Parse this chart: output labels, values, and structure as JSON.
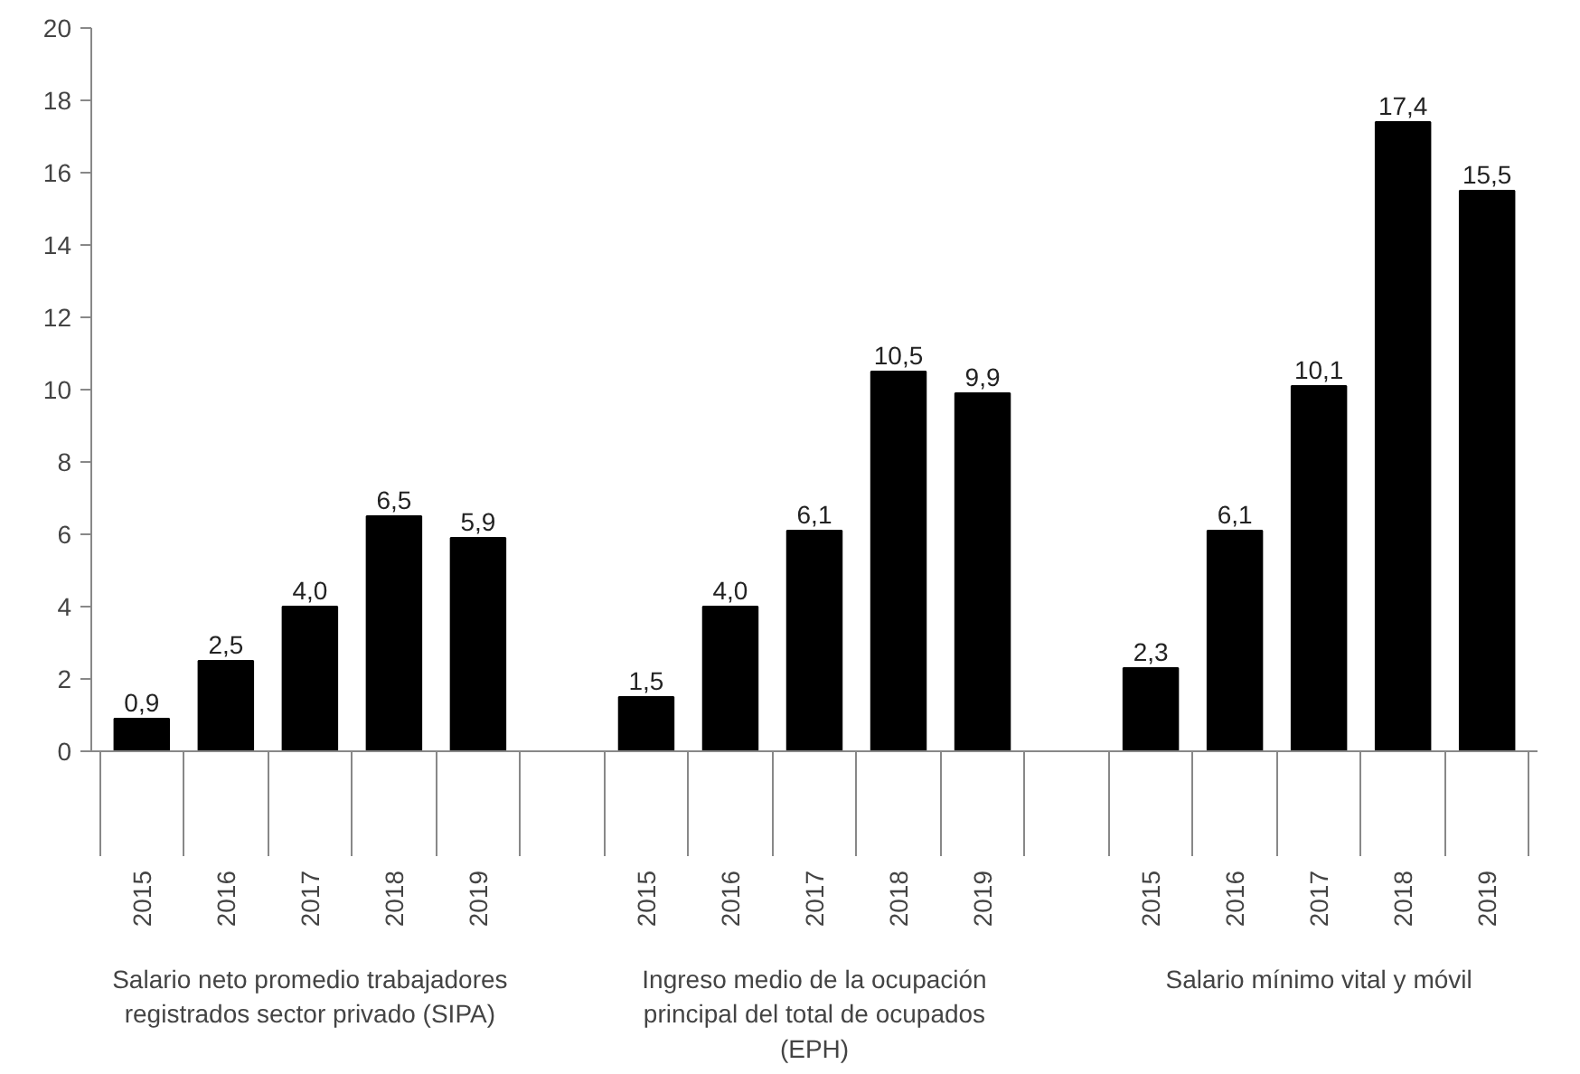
{
  "chart_data": {
    "type": "bar",
    "categories": [
      "2015",
      "2016",
      "2017",
      "2018",
      "2019",
      null,
      "2015",
      "2016",
      "2017",
      "2018",
      "2019",
      null,
      "2015",
      "2016",
      "2017",
      "2018",
      "2019"
    ],
    "values": [
      0.9,
      2.5,
      4.0,
      6.5,
      5.9,
      null,
      1.5,
      4.0,
      6.1,
      10.5,
      9.9,
      null,
      2.3,
      6.1,
      10.1,
      17.4,
      15.5
    ],
    "color": "#000000",
    "value_labels": [
      "0,9",
      "2,5",
      "4,0",
      "6,5",
      "5,9",
      null,
      "1,5",
      "4,0",
      "6,1",
      "10,5",
      "9,9",
      null,
      "2,3",
      "6,1",
      "10,1",
      "17,4",
      "15,5"
    ],
    "ylim": [
      0,
      20
    ],
    "yticks": [
      0,
      2,
      4,
      6,
      8,
      10,
      12,
      14,
      16,
      18,
      20
    ],
    "grid": false,
    "annotations": [
      "Salario neto promedio trabajadores registrados sector privado (SIPA)",
      "Ingreso medio de la ocupación principal del total de ocupados (EPH)",
      "Salario mínimo vital y móvil"
    ]
  }
}
